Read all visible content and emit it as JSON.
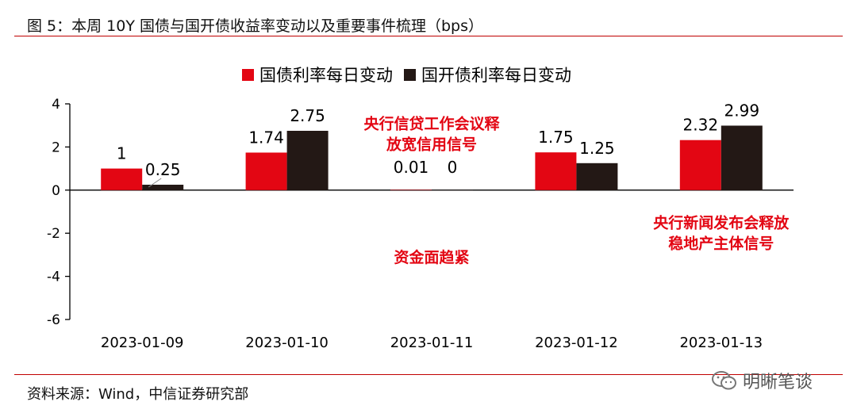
{
  "title": "图 5：本周 10Y 国债与国开债收益率变动以及重要事件梳理（bps）",
  "source": "资料来源：Wind，中信证券研究部",
  "watermark": "明晰笔谈",
  "colors": {
    "series1": "#e30613",
    "series2": "#231815",
    "annotation": "#e30613",
    "rule": "#c00000"
  },
  "chart_data": {
    "type": "bar",
    "categories": [
      "2023-01-09",
      "2023-01-10",
      "2023-01-11",
      "2023-01-12",
      "2023-01-13"
    ],
    "series": [
      {
        "name": "国债利率每日变动",
        "values": [
          1,
          1.74,
          0.01,
          1.75,
          2.32
        ],
        "labels": [
          "1",
          "1.74",
          "0.01",
          "1.75",
          "2.32"
        ],
        "color": "#e30613"
      },
      {
        "name": "国开债利率每日变动",
        "values": [
          0.25,
          2.75,
          0,
          1.25,
          2.99
        ],
        "labels": [
          "0.25",
          "2.75",
          "0",
          "1.25",
          "2.99"
        ],
        "color": "#231815"
      }
    ],
    "ylim": [
      -6,
      4
    ],
    "yticks": [
      -6,
      -4,
      -2,
      0,
      2,
      4
    ],
    "ytick_labels": [
      "-6",
      "-4",
      "-2",
      "0",
      "2",
      "4"
    ],
    "legend_position": "top-center",
    "grid": false,
    "annotations": [
      {
        "lines": [
          "央行信贷工作会议释",
          "放宽信用信号"
        ],
        "category": "2023-01-11",
        "at_y": 2.85
      },
      {
        "lines": [
          "资金面趋紧"
        ],
        "category": "2023-01-11",
        "at_y": -3.35
      },
      {
        "lines": [
          "央行新闻发布会释放",
          "稳地产主体信号"
        ],
        "category": "2023-01-13",
        "at_y": -1.75
      }
    ]
  }
}
